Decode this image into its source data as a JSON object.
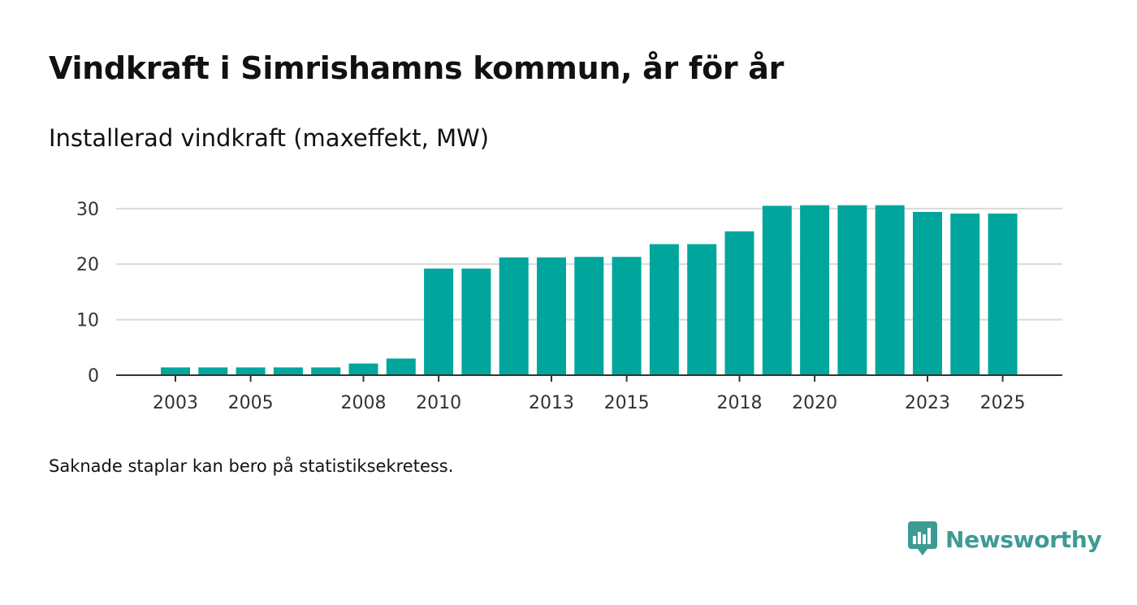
{
  "title": "Vindkraft i Simrishamns kommun, år för år",
  "subtitle": "Installerad vindkraft (maxeffekt, MW)",
  "footnote": "Saknade staplar kan bero på statistiksekretess.",
  "brand": {
    "name": "Newsworthy",
    "icon": "newsworthy-logo-icon"
  },
  "colors": {
    "bar": "#00a69c",
    "grid": "#d9d9d9",
    "axis": "#333333",
    "brand": "#3e9b94"
  },
  "chart_data": {
    "type": "bar",
    "title": "Installerad vindkraft (maxeffekt, MW)",
    "xlabel": "",
    "ylabel": "",
    "categories": [
      "2003",
      "2004",
      "2005",
      "2006",
      "2007",
      "2008",
      "2009",
      "2010",
      "2011",
      "2012",
      "2013",
      "2014",
      "2015",
      "2016",
      "2017",
      "2018",
      "2019",
      "2020",
      "2021",
      "2022",
      "2023",
      "2024",
      "2025"
    ],
    "values": [
      1.4,
      1.4,
      1.4,
      1.4,
      1.4,
      2.1,
      3.0,
      19.2,
      19.2,
      21.2,
      21.2,
      21.3,
      21.3,
      23.6,
      23.6,
      25.9,
      30.5,
      30.6,
      30.6,
      30.6,
      29.4,
      29.1,
      29.1
    ],
    "xtick_labels": [
      "2003",
      "2005",
      "2008",
      "2010",
      "2013",
      "2015",
      "2018",
      "2020",
      "2023",
      "2025"
    ],
    "yticks": [
      0,
      10,
      20,
      30
    ],
    "ylim": [
      0,
      31
    ],
    "grid": true,
    "legend": "none"
  }
}
